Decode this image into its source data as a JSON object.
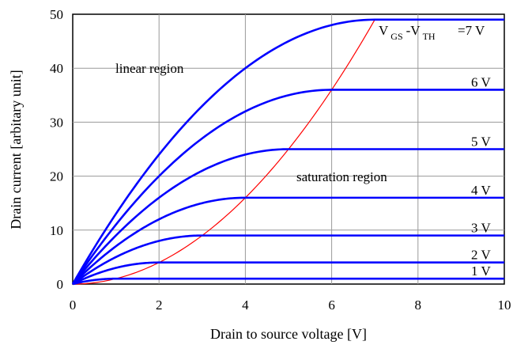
{
  "chart_data": {
    "type": "line",
    "xlabel": "Drain to source voltage [V]",
    "ylabel": "Drain current [arbitary unit]",
    "xlim": [
      0,
      10
    ],
    "ylim": [
      0,
      50
    ],
    "x_ticks": [
      "0",
      "2",
      "4",
      "6",
      "8",
      "10"
    ],
    "y_ticks": [
      "0",
      "10",
      "20",
      "30",
      "40",
      "50"
    ],
    "grid": true,
    "series": [
      {
        "overdrive": 1,
        "label": "1 V",
        "saturation_current": 1,
        "color": "#0000ff"
      },
      {
        "overdrive": 2,
        "label": "2 V",
        "saturation_current": 4,
        "color": "#0000ff"
      },
      {
        "overdrive": 3,
        "label": "3 V",
        "saturation_current": 9,
        "color": "#0000ff"
      },
      {
        "overdrive": 4,
        "label": "4 V",
        "saturation_current": 16,
        "color": "#0000ff"
      },
      {
        "overdrive": 5,
        "label": "5 V",
        "saturation_current": 25,
        "color": "#0000ff"
      },
      {
        "overdrive": 6,
        "label": "6 V",
        "saturation_current": 36,
        "color": "#0000ff"
      },
      {
        "overdrive": 7,
        "label": "=7 V",
        "saturation_current": 49,
        "color": "#0000ff"
      }
    ],
    "boundary_curve": {
      "x": [
        0,
        1,
        2,
        3,
        4,
        5,
        6,
        7
      ],
      "y": [
        0,
        1,
        4,
        9,
        16,
        25,
        36,
        49
      ],
      "color": "#ff0000"
    },
    "annotations": {
      "linear": "linear region",
      "saturation": "saturation region",
      "vgs_main": "V",
      "vgs_sub": "GS",
      "vth_main": "-V",
      "vth_sub": "TH"
    }
  }
}
